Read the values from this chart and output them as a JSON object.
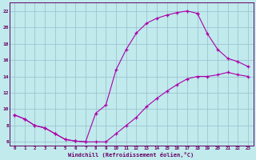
{
  "xlabel": "Windchill (Refroidissement éolien,°C)",
  "bg_color": "#c0eaec",
  "line_color": "#aa00aa",
  "grid_color": "#99bbcc",
  "axis_color": "#660066",
  "text_color": "#660066",
  "xlim": [
    -0.5,
    23.5
  ],
  "ylim": [
    5.5,
    23.0
  ],
  "yticks": [
    6,
    8,
    10,
    12,
    14,
    16,
    18,
    20,
    22
  ],
  "xticks": [
    0,
    1,
    2,
    3,
    4,
    5,
    6,
    7,
    8,
    9,
    10,
    11,
    12,
    13,
    14,
    15,
    16,
    17,
    18,
    19,
    20,
    21,
    22,
    23
  ],
  "curve_upper_x": [
    0,
    1,
    2,
    3,
    4,
    5,
    6,
    7,
    8,
    9,
    10,
    11,
    12,
    13,
    14,
    15,
    16,
    17,
    18
  ],
  "curve_upper_y": [
    9.3,
    8.8,
    8.0,
    7.7,
    7.0,
    6.3,
    6.1,
    6.0,
    9.5,
    10.5,
    14.8,
    17.3,
    19.3,
    20.5,
    21.1,
    21.5,
    21.8,
    22.0,
    21.7
  ],
  "curve_lower_x": [
    0,
    1,
    2,
    3,
    4,
    5,
    6,
    7,
    8,
    9,
    10,
    11,
    12,
    13,
    14,
    15,
    16,
    17,
    18,
    19,
    20,
    21,
    22,
    23
  ],
  "curve_lower_y": [
    9.3,
    8.8,
    8.0,
    7.7,
    7.0,
    6.3,
    6.1,
    6.0,
    6.0,
    6.0,
    7.0,
    8.0,
    9.0,
    10.3,
    11.3,
    12.2,
    13.0,
    13.7,
    14.0,
    14.0,
    14.2,
    14.5,
    14.2,
    14.0
  ],
  "curve_right_x": [
    18,
    19,
    20,
    21,
    22,
    23
  ],
  "curve_right_y": [
    21.7,
    19.2,
    17.3,
    16.2,
    15.8,
    15.2
  ]
}
